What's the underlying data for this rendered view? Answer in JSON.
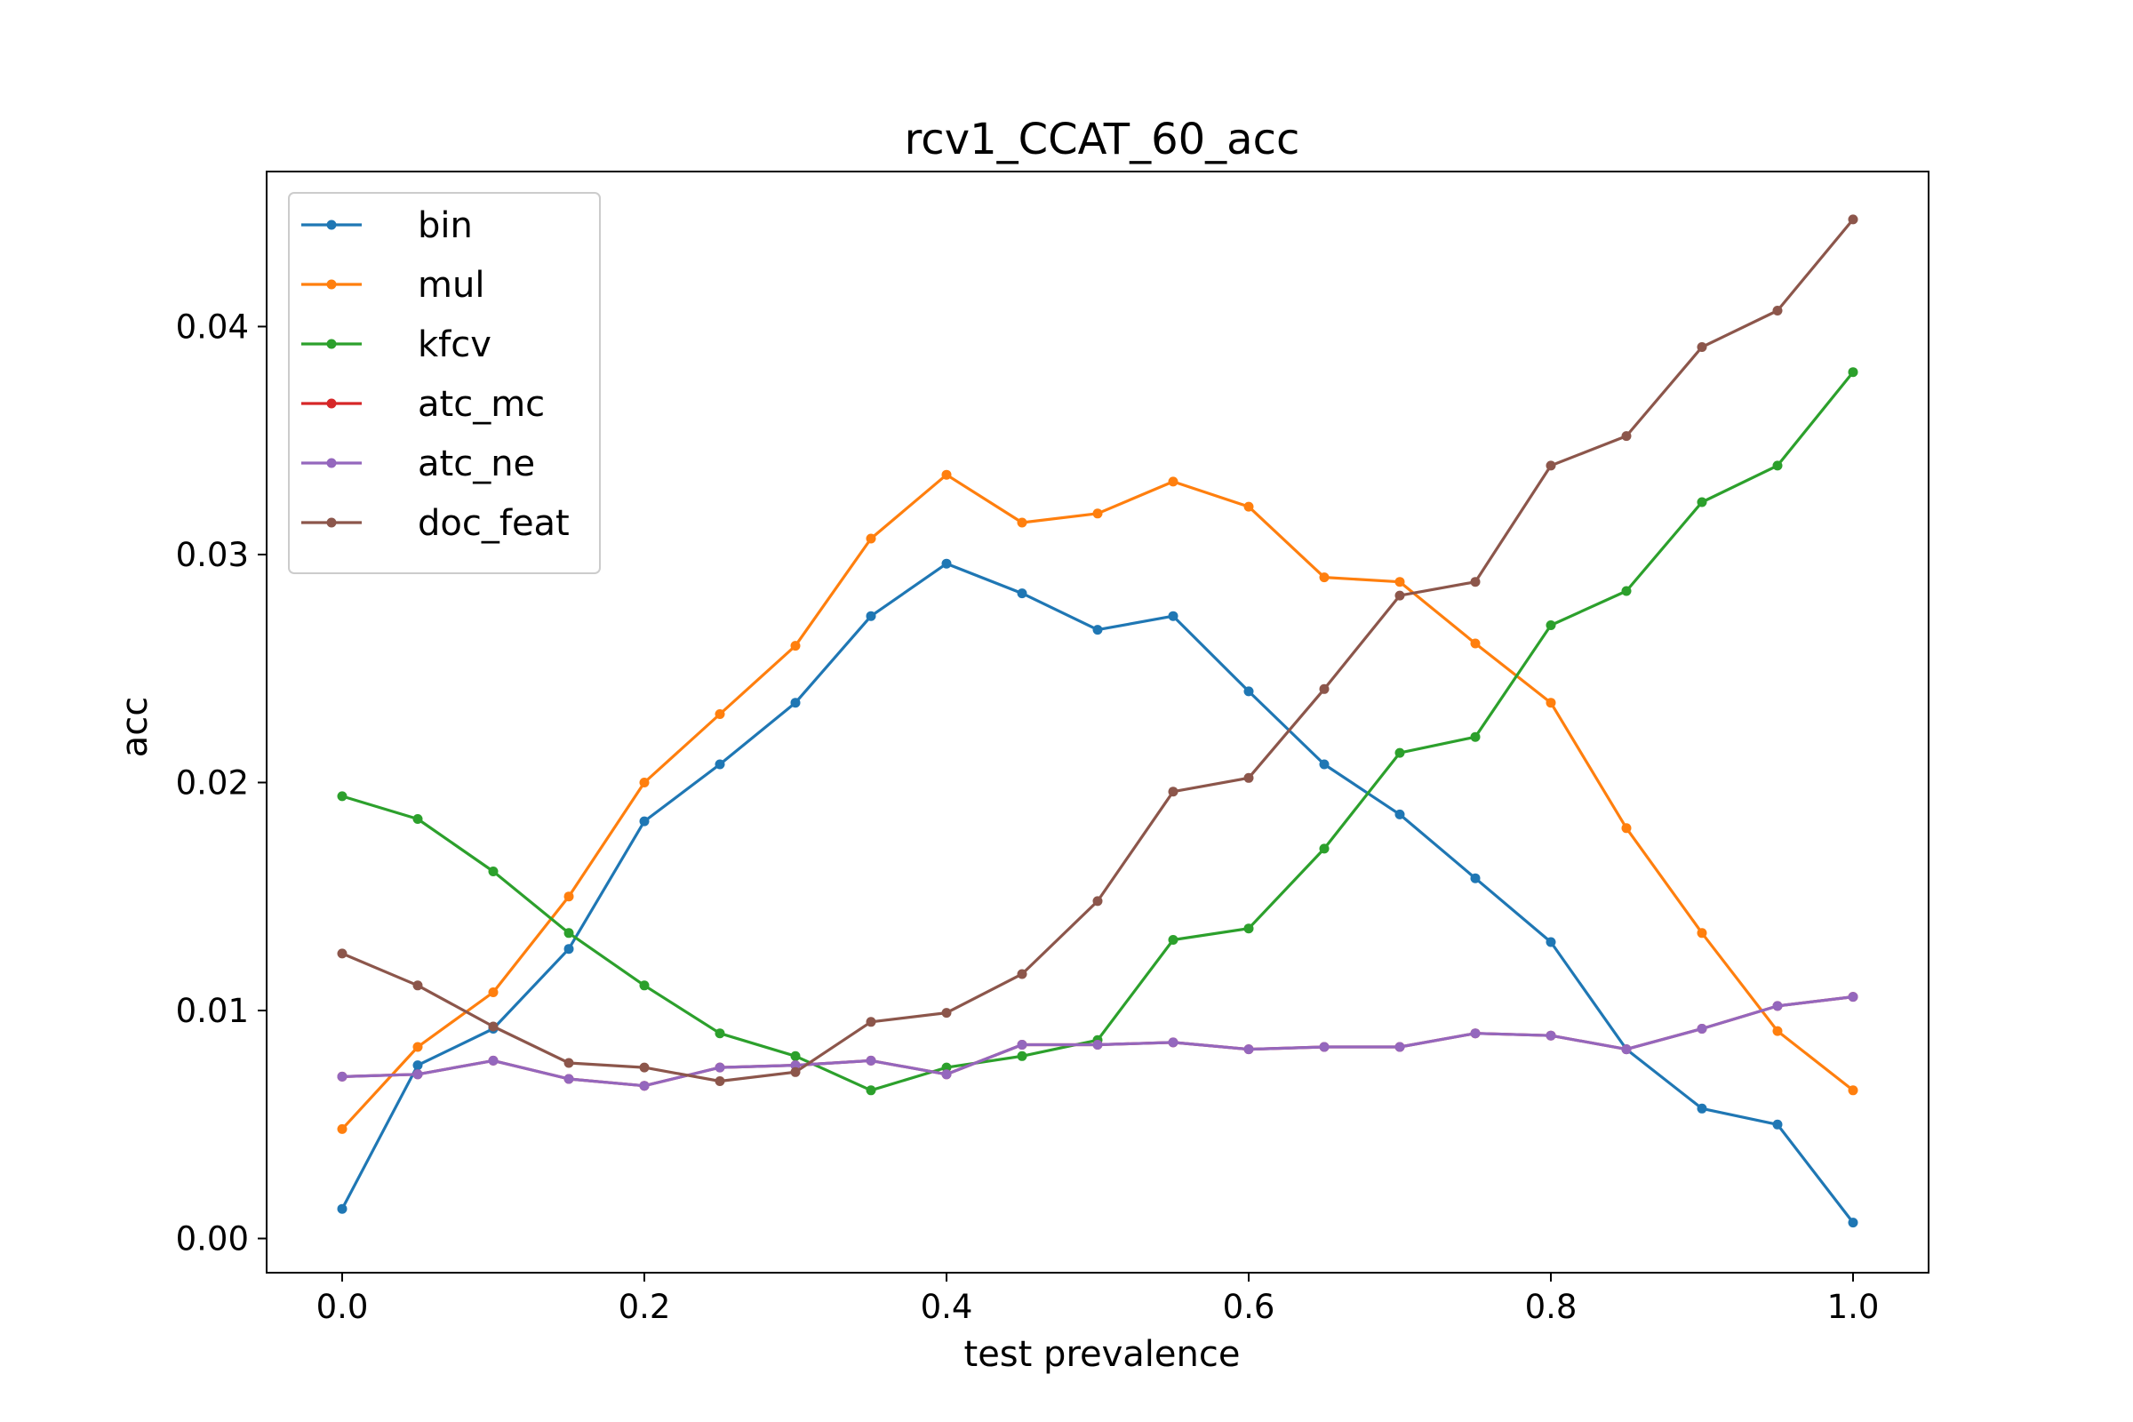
{
  "chart_data": {
    "type": "line",
    "title": "rcv1_CCAT_60_acc",
    "xlabel": "test prevalence",
    "ylabel": "acc",
    "xlim": [
      -0.05,
      1.05
    ],
    "ylim": [
      -0.0015,
      0.0468
    ],
    "xticks": [
      0.0,
      0.2,
      0.4,
      0.6,
      0.8,
      1.0
    ],
    "xtick_labels": [
      "0.0",
      "0.2",
      "0.4",
      "0.6",
      "0.8",
      "1.0"
    ],
    "yticks": [
      0.0,
      0.01,
      0.02,
      0.03,
      0.04
    ],
    "ytick_labels": [
      "0.00",
      "0.01",
      "0.02",
      "0.03",
      "0.04"
    ],
    "grid": false,
    "legend_position": "upper-left",
    "x": [
      0.0,
      0.05,
      0.1,
      0.15,
      0.2,
      0.25,
      0.3,
      0.35,
      0.4,
      0.45,
      0.5,
      0.55,
      0.6,
      0.65,
      0.7,
      0.75,
      0.8,
      0.85,
      0.9,
      0.95,
      1.0
    ],
    "series": [
      {
        "name": "bin",
        "color": "#1f77b4",
        "values": [
          0.0013,
          0.0076,
          0.0092,
          0.0127,
          0.0183,
          0.0208,
          0.0235,
          0.0273,
          0.0296,
          0.0283,
          0.0267,
          0.0273,
          0.024,
          0.0208,
          0.0186,
          0.0158,
          0.013,
          0.0083,
          0.0057,
          0.005,
          0.0007
        ]
      },
      {
        "name": "mul",
        "color": "#ff7f0e",
        "values": [
          0.0048,
          0.0084,
          0.0108,
          0.015,
          0.02,
          0.023,
          0.026,
          0.0307,
          0.0335,
          0.0314,
          0.0318,
          0.0332,
          0.0321,
          0.029,
          0.0288,
          0.0261,
          0.0235,
          0.018,
          0.0134,
          0.0091,
          0.0065
        ]
      },
      {
        "name": "kfcv",
        "color": "#2ca02c",
        "values": [
          0.0194,
          0.0184,
          0.0161,
          0.0134,
          0.0111,
          0.009,
          0.008,
          0.0065,
          0.0075,
          0.008,
          0.0087,
          0.0131,
          0.0136,
          0.0171,
          0.0213,
          0.022,
          0.0269,
          0.0284,
          0.0323,
          0.0339,
          0.038
        ]
      },
      {
        "name": "atc_mc",
        "color": "#d62728",
        "values": [
          0.0071,
          0.0072,
          0.0078,
          0.007,
          0.0067,
          0.0075,
          0.0076,
          0.0078,
          0.0072,
          0.0085,
          0.0085,
          0.0086,
          0.0083,
          0.0084,
          0.0084,
          0.009,
          0.0089,
          0.0083,
          0.0092,
          0.0102,
          0.0106
        ]
      },
      {
        "name": "atc_ne",
        "color": "#9467bd",
        "values": [
          0.0071,
          0.0072,
          0.0078,
          0.007,
          0.0067,
          0.0075,
          0.0076,
          0.0078,
          0.0072,
          0.0085,
          0.0085,
          0.0086,
          0.0083,
          0.0084,
          0.0084,
          0.009,
          0.0089,
          0.0083,
          0.0092,
          0.0102,
          0.0106
        ]
      },
      {
        "name": "doc_feat",
        "color": "#8c564b",
        "values": [
          0.0125,
          0.0111,
          0.0093,
          0.0077,
          0.0075,
          0.0069,
          0.0073,
          0.0095,
          0.0099,
          0.0116,
          0.0148,
          0.0196,
          0.0202,
          0.0241,
          0.0282,
          0.0288,
          0.0339,
          0.0352,
          0.0391,
          0.0407,
          0.0447
        ]
      }
    ]
  }
}
